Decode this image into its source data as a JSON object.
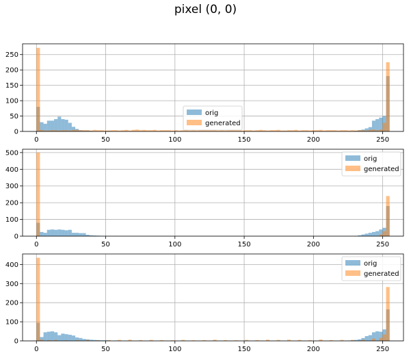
{
  "title": "pixel (0, 0)",
  "colors": {
    "orig": "#1f77b4",
    "generated": "#ff7f0e",
    "grid": "#b0b0b0"
  },
  "chart_data": [
    {
      "type": "histogram",
      "xlim": [
        -10,
        265
      ],
      "ylim": [
        0,
        285
      ],
      "xticks": [
        0,
        50,
        100,
        150,
        200,
        250
      ],
      "yticks": [
        0,
        50,
        100,
        150,
        200,
        250
      ],
      "grid": true,
      "legend_position": "center-bottom",
      "bin_width": 2.55,
      "series": [
        {
          "name": "orig",
          "color": "#1f77b4",
          "alpha": 0.5,
          "bins": [
            [
              0,
              80
            ],
            [
              1,
              30
            ],
            [
              2,
              25
            ],
            [
              3,
              35
            ],
            [
              4,
              35
            ],
            [
              5,
              40
            ],
            [
              6,
              48
            ],
            [
              7,
              40
            ],
            [
              8,
              38
            ],
            [
              9,
              28
            ],
            [
              10,
              15
            ],
            [
              11,
              8
            ],
            [
              12,
              4
            ],
            [
              13,
              3
            ],
            [
              14,
              3
            ],
            [
              15,
              2
            ],
            [
              17,
              1
            ],
            [
              20,
              2
            ],
            [
              25,
              1
            ],
            [
              30,
              1
            ],
            [
              35,
              1
            ],
            [
              60,
              1
            ],
            [
              70,
              1
            ],
            [
              80,
              1
            ],
            [
              88,
              1
            ],
            [
              90,
              2
            ],
            [
              91,
              4
            ],
            [
              92,
              6
            ],
            [
              93,
              10
            ],
            [
              94,
              14
            ],
            [
              95,
              35
            ],
            [
              96,
              40
            ],
            [
              97,
              45
            ],
            [
              98,
              50
            ],
            [
              99,
              180
            ]
          ]
        },
        {
          "name": "generated",
          "color": "#ff7f0e",
          "alpha": 0.5,
          "bins": [
            [
              0,
              272
            ],
            [
              1,
              5
            ],
            [
              2,
              3
            ],
            [
              3,
              3
            ],
            [
              4,
              4
            ],
            [
              5,
              4
            ],
            [
              6,
              3
            ],
            [
              7,
              4
            ],
            [
              8,
              4
            ],
            [
              9,
              3
            ],
            [
              10,
              5
            ],
            [
              11,
              5
            ],
            [
              12,
              4
            ],
            [
              13,
              4
            ],
            [
              14,
              4
            ],
            [
              15,
              3
            ],
            [
              16,
              5
            ],
            [
              17,
              4
            ],
            [
              18,
              4
            ],
            [
              19,
              3
            ],
            [
              20,
              3
            ],
            [
              21,
              4
            ],
            [
              22,
              4
            ],
            [
              23,
              3
            ],
            [
              24,
              4
            ],
            [
              25,
              5
            ],
            [
              26,
              3
            ],
            [
              27,
              5
            ],
            [
              28,
              6
            ],
            [
              29,
              4
            ],
            [
              30,
              5
            ],
            [
              31,
              4
            ],
            [
              32,
              4
            ],
            [
              33,
              5
            ],
            [
              34,
              3
            ],
            [
              35,
              4
            ],
            [
              36,
              4
            ],
            [
              37,
              4
            ],
            [
              38,
              3
            ],
            [
              39,
              4
            ],
            [
              40,
              3
            ],
            [
              41,
              4
            ],
            [
              42,
              5
            ],
            [
              43,
              3
            ],
            [
              44,
              4
            ],
            [
              45,
              3
            ],
            [
              46,
              4
            ],
            [
              47,
              5
            ],
            [
              48,
              4
            ],
            [
              49,
              4
            ],
            [
              50,
              5
            ],
            [
              51,
              3
            ],
            [
              52,
              4
            ],
            [
              53,
              3
            ],
            [
              54,
              4
            ],
            [
              55,
              5
            ],
            [
              56,
              4
            ],
            [
              57,
              4
            ],
            [
              58,
              3
            ],
            [
              59,
              4
            ],
            [
              60,
              4
            ],
            [
              61,
              3
            ],
            [
              62,
              4
            ],
            [
              63,
              5
            ],
            [
              64,
              4
            ],
            [
              65,
              3
            ],
            [
              66,
              4
            ],
            [
              67,
              4
            ],
            [
              68,
              5
            ],
            [
              69,
              3
            ],
            [
              70,
              3
            ],
            [
              71,
              4
            ],
            [
              72,
              4
            ],
            [
              73,
              5
            ],
            [
              74,
              3
            ],
            [
              75,
              4
            ],
            [
              76,
              4
            ],
            [
              77,
              3
            ],
            [
              78,
              4
            ],
            [
              79,
              4
            ],
            [
              80,
              5
            ],
            [
              81,
              3
            ],
            [
              82,
              4
            ],
            [
              83,
              4
            ],
            [
              84,
              4
            ],
            [
              85,
              3
            ],
            [
              86,
              4
            ],
            [
              87,
              4
            ],
            [
              88,
              3
            ],
            [
              89,
              4
            ],
            [
              90,
              3
            ],
            [
              91,
              4
            ],
            [
              92,
              4
            ],
            [
              93,
              3
            ],
            [
              94,
              5
            ],
            [
              95,
              6
            ],
            [
              96,
              4
            ],
            [
              97,
              6
            ],
            [
              98,
              28
            ],
            [
              99,
              225
            ]
          ]
        }
      ]
    },
    {
      "type": "histogram",
      "xlim": [
        -10,
        265
      ],
      "ylim": [
        0,
        520
      ],
      "xticks": [
        0,
        50,
        100,
        150,
        200,
        250
      ],
      "yticks": [
        0,
        100,
        200,
        300,
        400,
        500
      ],
      "grid": true,
      "legend_position": "upper right",
      "bin_width": 2.55,
      "series": [
        {
          "name": "orig",
          "color": "#1f77b4",
          "alpha": 0.5,
          "bins": [
            [
              0,
              80
            ],
            [
              1,
              25
            ],
            [
              2,
              20
            ],
            [
              3,
              38
            ],
            [
              4,
              40
            ],
            [
              5,
              38
            ],
            [
              6,
              40
            ],
            [
              7,
              38
            ],
            [
              8,
              35
            ],
            [
              9,
              38
            ],
            [
              10,
              20
            ],
            [
              11,
              20
            ],
            [
              12,
              18
            ],
            [
              13,
              18
            ],
            [
              14,
              8
            ],
            [
              15,
              5
            ],
            [
              16,
              4
            ],
            [
              17,
              3
            ],
            [
              18,
              2
            ],
            [
              19,
              2
            ],
            [
              22,
              1
            ],
            [
              90,
              2
            ],
            [
              91,
              5
            ],
            [
              92,
              10
            ],
            [
              93,
              15
            ],
            [
              94,
              20
            ],
            [
              95,
              25
            ],
            [
              96,
              30
            ],
            [
              97,
              40
            ],
            [
              98,
              50
            ],
            [
              99,
              180
            ]
          ]
        },
        {
          "name": "generated",
          "color": "#ff7f0e",
          "alpha": 0.5,
          "bins": [
            [
              0,
              500
            ],
            [
              97,
              10
            ],
            [
              98,
              30
            ],
            [
              99,
              240
            ]
          ]
        }
      ]
    },
    {
      "type": "histogram",
      "xlim": [
        -10,
        265
      ],
      "ylim": [
        0,
        455
      ],
      "xticks": [
        0,
        50,
        100,
        150,
        200,
        250
      ],
      "yticks": [
        0,
        100,
        200,
        300,
        400
      ],
      "grid": true,
      "legend_position": "upper right",
      "bin_width": 2.55,
      "series": [
        {
          "name": "orig",
          "color": "#1f77b4",
          "alpha": 0.5,
          "bins": [
            [
              0,
              95
            ],
            [
              1,
              20
            ],
            [
              2,
              45
            ],
            [
              3,
              48
            ],
            [
              4,
              50
            ],
            [
              5,
              45
            ],
            [
              6,
              30
            ],
            [
              7,
              38
            ],
            [
              8,
              35
            ],
            [
              9,
              32
            ],
            [
              10,
              28
            ],
            [
              11,
              18
            ],
            [
              12,
              15
            ],
            [
              13,
              10
            ],
            [
              14,
              8
            ],
            [
              15,
              6
            ],
            [
              16,
              5
            ],
            [
              17,
              4
            ],
            [
              18,
              3
            ],
            [
              19,
              3
            ],
            [
              20,
              2
            ],
            [
              22,
              2
            ],
            [
              25,
              1
            ],
            [
              88,
              2
            ],
            [
              89,
              3
            ],
            [
              90,
              5
            ],
            [
              91,
              8
            ],
            [
              92,
              15
            ],
            [
              93,
              25
            ],
            [
              94,
              30
            ],
            [
              95,
              45
            ],
            [
              96,
              50
            ],
            [
              97,
              48
            ],
            [
              98,
              60
            ],
            [
              99,
              165
            ]
          ]
        },
        {
          "name": "generated",
          "color": "#ff7f0e",
          "alpha": 0.5,
          "bins": [
            [
              0,
              435
            ],
            [
              1,
              6
            ],
            [
              3,
              4
            ],
            [
              5,
              5
            ],
            [
              8,
              3
            ],
            [
              11,
              4
            ],
            [
              14,
              5
            ],
            [
              17,
              3
            ],
            [
              20,
              4
            ],
            [
              23,
              5
            ],
            [
              26,
              6
            ],
            [
              29,
              4
            ],
            [
              32,
              5
            ],
            [
              35,
              4
            ],
            [
              38,
              3
            ],
            [
              41,
              5
            ],
            [
              44,
              3
            ],
            [
              47,
              4
            ],
            [
              50,
              6
            ],
            [
              53,
              4
            ],
            [
              56,
              3
            ],
            [
              59,
              5
            ],
            [
              62,
              4
            ],
            [
              65,
              6
            ],
            [
              68,
              5
            ],
            [
              71,
              6
            ],
            [
              74,
              5
            ],
            [
              77,
              4
            ],
            [
              80,
              7
            ],
            [
              83,
              4
            ],
            [
              86,
              5
            ],
            [
              89,
              5
            ],
            [
              92,
              6
            ],
            [
              95,
              12
            ],
            [
              97,
              16
            ],
            [
              98,
              34
            ],
            [
              99,
              282
            ]
          ]
        }
      ]
    }
  ]
}
